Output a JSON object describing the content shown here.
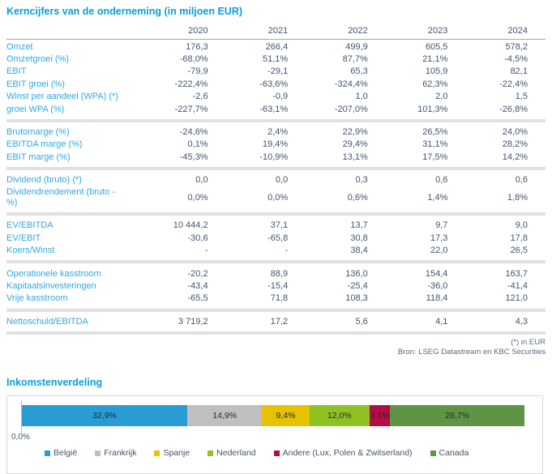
{
  "page": {
    "title": "Kerncijfers van de onderneming (in miljoen EUR)",
    "footnote_unit": "(*) in EUR",
    "footnote_source": "Bron: LSEG Datastream en KBC Securities"
  },
  "table": {
    "year_headers": [
      "2020",
      "2021",
      "2022",
      "2023",
      "2024"
    ],
    "sections": [
      {
        "rows": [
          {
            "label": "Omzet",
            "values": [
              "176,3",
              "266,4",
              "499,9",
              "605,5",
              "578,2"
            ]
          },
          {
            "label": "Omzetgroei (%)",
            "values": [
              "-68,0%",
              "51,1%",
              "87,7%",
              "21,1%",
              "-4,5%"
            ]
          },
          {
            "label": "EBIT",
            "values": [
              "-79,9",
              "-29,1",
              "65,3",
              "105,9",
              "82,1"
            ]
          },
          {
            "label": "EBIT groei (%)",
            "values": [
              "-222,4%",
              "-63,6%",
              "-324,4%",
              "62,3%",
              "-22,4%"
            ]
          },
          {
            "label": "Winst per aandeel (WPA) (*)",
            "values": [
              "-2,6",
              "-0,9",
              "1,0",
              "2,0",
              "1,5"
            ]
          },
          {
            "label": "groei WPA (%)",
            "values": [
              "-227,7%",
              "-63,1%",
              "-207,0%",
              "101,3%",
              "-26,8%"
            ]
          }
        ]
      },
      {
        "rows": [
          {
            "label": "Brutomarge (%)",
            "values": [
              "-24,6%",
              "2,4%",
              "22,9%",
              "26,5%",
              "24,0%"
            ]
          },
          {
            "label": "EBITDA marge (%)",
            "values": [
              "0,1%",
              "19,4%",
              "29,4%",
              "31,1%",
              "28,2%"
            ]
          },
          {
            "label": "EBIT marge (%)",
            "values": [
              "-45,3%",
              "-10,9%",
              "13,1%",
              "17,5%",
              "14,2%"
            ]
          }
        ]
      },
      {
        "rows": [
          {
            "label": "Dividend (bruto) (*)",
            "values": [
              "0,0",
              "0,0",
              "0,3",
              "0,6",
              "0,6"
            ]
          },
          {
            "label": "Dividendrendement (bruto - %)",
            "values": [
              "0,0%",
              "0,0%",
              "0,6%",
              "1,4%",
              "1,8%"
            ]
          }
        ]
      },
      {
        "rows": [
          {
            "label": "EV/EBITDA",
            "values": [
              "10 444,2",
              "37,1",
              "13,7",
              "9,7",
              "9,0"
            ]
          },
          {
            "label": "EV/EBIT",
            "values": [
              "-30,6",
              "-65,8",
              "30,8",
              "17,3",
              "17,8"
            ]
          },
          {
            "label": "Koers/Winst",
            "values": [
              "-",
              "-",
              "38,4",
              "22,0",
              "26,5"
            ]
          }
        ]
      },
      {
        "rows": [
          {
            "label": "Operationele kasstroom",
            "values": [
              "-20,2",
              "88,9",
              "136,0",
              "154,4",
              "163,7"
            ]
          },
          {
            "label": "Kapitaalsinvesteringen",
            "values": [
              "-43,4",
              "-15,4",
              "-25,4",
              "-36,0",
              "-41,4"
            ]
          },
          {
            "label": "Vrije kasstroom",
            "values": [
              "-65,5",
              "71,8",
              "108,3",
              "118,4",
              "121,0"
            ]
          }
        ]
      },
      {
        "rows": [
          {
            "label": "Nettoschuld/EBITDA",
            "values": [
              "3 719,2",
              "17,2",
              "5,6",
              "4,1",
              "4,3"
            ]
          }
        ]
      }
    ]
  },
  "chart_data": {
    "type": "bar",
    "orientation": "horizontal-stacked",
    "title": "Inkomstenverdeling",
    "x_axis_origin_label": "0,0%",
    "legend_position": "bottom",
    "segments": [
      {
        "name": "België",
        "value": 32.9,
        "label": "32,9%",
        "color": "#299CD6"
      },
      {
        "name": "Frankrijk",
        "value": 14.9,
        "label": "14,9%",
        "color": "#BFBFBF"
      },
      {
        "name": "Spanje",
        "value": 9.4,
        "label": "9,4%",
        "color": "#E6C200"
      },
      {
        "name": "Nederland",
        "value": 12.0,
        "label": "12,0%",
        "color": "#8FC122"
      },
      {
        "name": "Andere (Lux, Polen & Zwitserland)",
        "value": 4.1,
        "label": "4,1%",
        "color": "#B50D43"
      },
      {
        "name": "Canada",
        "value": 26.7,
        "label": "26,7%",
        "color": "#5E9444"
      }
    ]
  },
  "colors": {
    "title_blue": "#0C9DDB",
    "label_blue": "#2FA9E1",
    "value_slate": "#44546A",
    "separator_gray": "#E1E1E1"
  }
}
